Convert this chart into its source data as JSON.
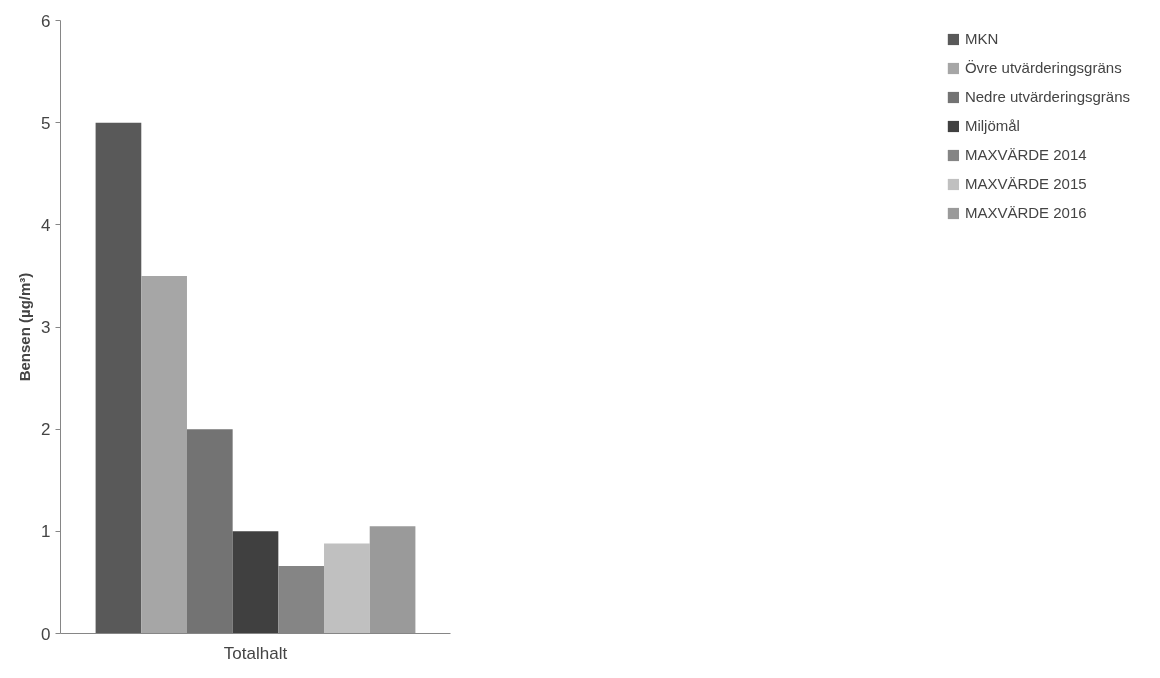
{
  "chart_data": {
    "type": "bar",
    "ylabel": "Bensen (µg/m³)",
    "categories": [
      "Totalhalt"
    ],
    "series": [
      {
        "name": "MKN",
        "color": "#595959",
        "values": [
          5
        ]
      },
      {
        "name": "Övre utvärderingsgräns",
        "color": "#a6a6a6",
        "values": [
          3.5
        ]
      },
      {
        "name": "Nedre utvärderingsgräns",
        "color": "#737373",
        "values": [
          2
        ]
      },
      {
        "name": "Miljömål",
        "color": "#404040",
        "values": [
          1
        ]
      },
      {
        "name": "MAXVÄRDE 2014",
        "color": "#858585",
        "values": [
          0.66
        ]
      },
      {
        "name": "MAXVÄRDE 2015",
        "color": "#c0c0c0",
        "values": [
          0.88
        ]
      },
      {
        "name": "MAXVÄRDE 2016",
        "color": "#9a9a9a",
        "values": [
          1.05
        ]
      }
    ],
    "ylim": [
      0,
      6
    ],
    "yticks": [
      0,
      1,
      2,
      3,
      4,
      5,
      6
    ],
    "grid": false,
    "legend": "right"
  }
}
